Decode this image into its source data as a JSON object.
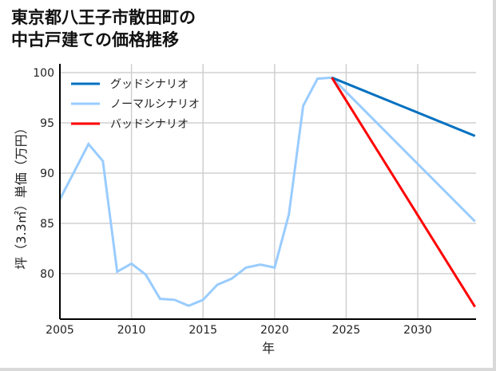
{
  "title_line1": "東京都八王子市散田町の",
  "title_line2": "中古戸建ての価格推移",
  "chart_data": {
    "type": "line",
    "title": "東京都八王子市散田町の中古戸建ての価格推移",
    "xlabel": "年",
    "ylabel": "坪（3.3㎡）単価（万円）",
    "xlim": [
      2005,
      2034
    ],
    "ylim": [
      75.5,
      101
    ],
    "xticks": [
      2005,
      2010,
      2015,
      2020,
      2025,
      2030
    ],
    "yticks": [
      80,
      85,
      90,
      95,
      100
    ],
    "grid": true,
    "legend_position": "upper left",
    "series": [
      {
        "name": "グッドシナリオ",
        "color": "#0070c0",
        "x": [
          2024,
          2034
        ],
        "values": [
          99.5,
          93.7
        ]
      },
      {
        "name": "ノーマルシナリオ",
        "color": "#99ccff",
        "x": [
          2005,
          2007,
          2008,
          2009,
          2010,
          2011,
          2012,
          2013,
          2014,
          2015,
          2016,
          2017,
          2018,
          2019,
          2020,
          2021,
          2022,
          2023,
          2024,
          2034
        ],
        "values": [
          87.4,
          92.9,
          91.2,
          80.2,
          81.0,
          79.9,
          77.5,
          77.4,
          76.8,
          77.4,
          78.9,
          79.5,
          80.6,
          80.9,
          80.6,
          85.9,
          96.7,
          99.4,
          99.5,
          85.2
        ]
      },
      {
        "name": "バッドシナリオ",
        "color": "#ff0000",
        "x": [
          2024,
          2034
        ],
        "values": [
          99.5,
          76.7
        ]
      }
    ]
  }
}
